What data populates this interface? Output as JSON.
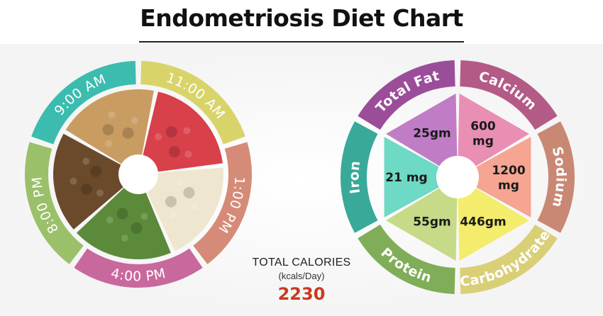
{
  "title": "Endometriosis Diet Chart",
  "meal_wheel": {
    "times": [
      {
        "label": "9:00 AM",
        "color": "#3bbcae"
      },
      {
        "label": "11:00 AM",
        "color": "#d8d46a"
      },
      {
        "label": "1:00 PM",
        "color": "#d58b78"
      },
      {
        "label": "4:00 PM",
        "color": "#c8689c"
      },
      {
        "label": "8:00 PM",
        "color": "#9bc06a"
      }
    ],
    "foods": [
      {
        "name": "sandwich-photo",
        "color": "#c99c62"
      },
      {
        "name": "fruit-salad-photo",
        "color": "#d8404a"
      },
      {
        "name": "rice-photo",
        "color": "#efe6cf"
      },
      {
        "name": "green-salad-photo",
        "color": "#5b8a3a"
      },
      {
        "name": "okra-curry-photo",
        "color": "#6b4a2c"
      }
    ]
  },
  "nutrients": [
    {
      "name": "Total Fat",
      "value": "25gm",
      "ring_color": "#9b4d9a",
      "fill_color": "#c07dc6"
    },
    {
      "name": "Calcium",
      "value": "600 mg",
      "ring_color": "#b45a86",
      "fill_color": "#e88fb3"
    },
    {
      "name": "Sodium",
      "value": "1200 mg",
      "ring_color": "#c98873",
      "fill_color": "#f5a592"
    },
    {
      "name": "Carbohydrate",
      "value": "446gm",
      "ring_color": "#d9cf77",
      "fill_color": "#f4ec6c"
    },
    {
      "name": "Protein",
      "value": "55gm",
      "ring_color": "#80ad57",
      "fill_color": "#c6da88"
    },
    {
      "name": "Iron",
      "value": "21 mg",
      "ring_color": "#39a99a",
      "fill_color": "#6ed9c4"
    }
  ],
  "total_calories": {
    "title": "TOTAL CALORIES",
    "unit": "(kcals/Day)",
    "value": "2230"
  }
}
